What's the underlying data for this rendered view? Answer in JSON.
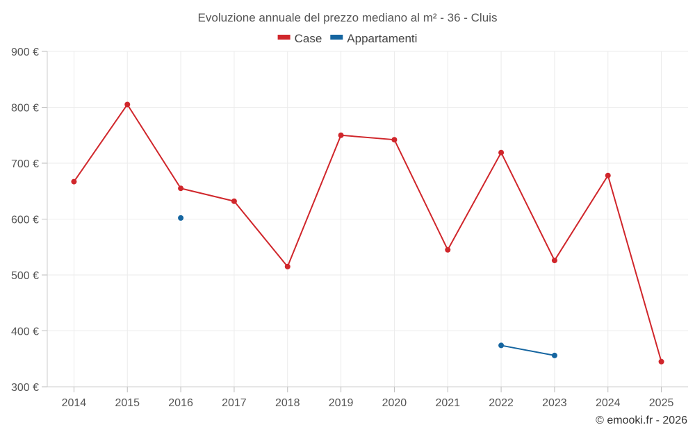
{
  "chart_data": {
    "type": "line",
    "title": "Evoluzione annuale del prezzo mediano al m² - 36 - Cluis",
    "categories": [
      "2014",
      "2015",
      "2016",
      "2017",
      "2018",
      "2019",
      "2020",
      "2021",
      "2022",
      "2023",
      "2024",
      "2025"
    ],
    "series": [
      {
        "name": "Case",
        "color": "#d0262b",
        "values": [
          667,
          805,
          655,
          632,
          515,
          750,
          742,
          545,
          719,
          526,
          678,
          345
        ]
      },
      {
        "name": "Appartamenti",
        "color": "#1565a0",
        "values": [
          null,
          null,
          602,
          null,
          null,
          null,
          null,
          null,
          374,
          356,
          null,
          null
        ]
      }
    ],
    "y_ticks": [
      "900 €",
      "800 €",
      "700 €",
      "600 €",
      "500 €",
      "400 €",
      "300 €"
    ],
    "ylim": [
      300,
      900
    ],
    "xlabel": "",
    "ylabel": "",
    "grid": true,
    "legend_position": "top-center",
    "credit": "© emooki.fr - 2026"
  }
}
